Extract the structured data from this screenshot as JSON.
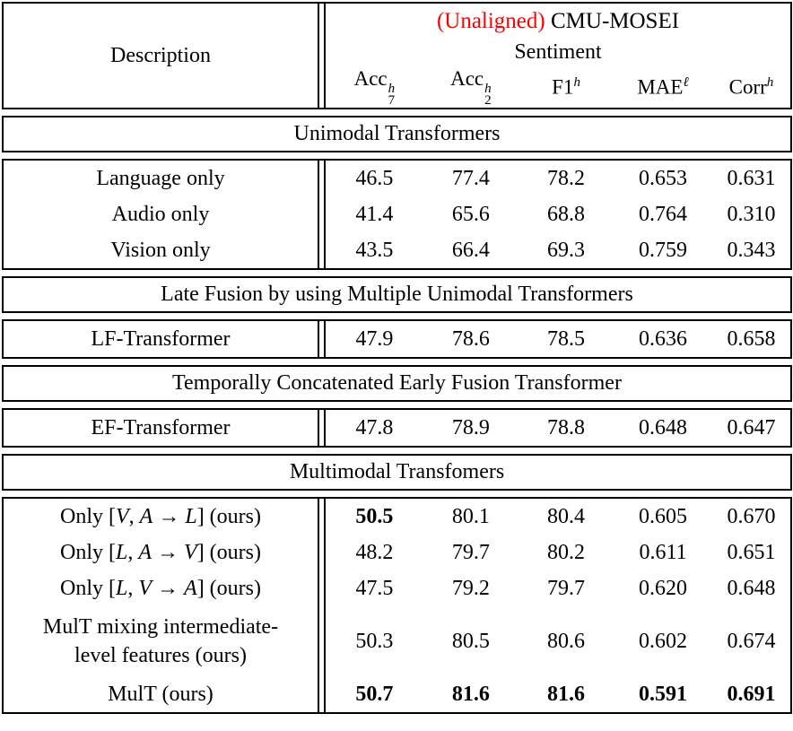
{
  "colors": {
    "accent_red": "#ff0000",
    "border": "#000000",
    "text": "#000000",
    "background": "#ffffff"
  },
  "header": {
    "description": "Description",
    "dataset_prefix": "(Unaligned)",
    "dataset_name": "CMU-MOSEI",
    "task": "Sentiment",
    "metrics": [
      {
        "base": "Acc",
        "sub": "7",
        "sup": "h"
      },
      {
        "base": "Acc",
        "sub": "2",
        "sup": "h"
      },
      {
        "base": "F1",
        "sub": "",
        "sup": "h"
      },
      {
        "base": "MAE",
        "sub": "",
        "sup": "ℓ"
      },
      {
        "base": "Corr",
        "sub": "",
        "sup": "h"
      }
    ]
  },
  "sections": [
    {
      "title": "Unimodal Transformers",
      "rows": [
        {
          "label_lines": [
            [
              {
                "t": "Language only"
              }
            ]
          ],
          "values": [
            {
              "v": "46.5"
            },
            {
              "v": "77.4"
            },
            {
              "v": "78.2"
            },
            {
              "v": "0.653"
            },
            {
              "v": "0.631"
            }
          ]
        },
        {
          "label_lines": [
            [
              {
                "t": "Audio only"
              }
            ]
          ],
          "values": [
            {
              "v": "41.4"
            },
            {
              "v": "65.6"
            },
            {
              "v": "68.8"
            },
            {
              "v": "0.764"
            },
            {
              "v": "0.310"
            }
          ]
        },
        {
          "label_lines": [
            [
              {
                "t": "Vision only"
              }
            ]
          ],
          "values": [
            {
              "v": "43.5"
            },
            {
              "v": "66.4"
            },
            {
              "v": "69.3"
            },
            {
              "v": "0.759"
            },
            {
              "v": "0.343"
            }
          ]
        }
      ]
    },
    {
      "title": "Late Fusion by using Multiple Unimodal Transformers",
      "rows": [
        {
          "label_lines": [
            [
              {
                "t": "LF-Transformer"
              }
            ]
          ],
          "values": [
            {
              "v": "47.9"
            },
            {
              "v": "78.6"
            },
            {
              "v": "78.5"
            },
            {
              "v": "0.636"
            },
            {
              "v": "0.658"
            }
          ]
        }
      ]
    },
    {
      "title": "Temporally Concatenated Early Fusion Transformer",
      "rows": [
        {
          "label_lines": [
            [
              {
                "t": "EF-Transformer"
              }
            ]
          ],
          "values": [
            {
              "v": "47.8"
            },
            {
              "v": "78.9"
            },
            {
              "v": "78.8"
            },
            {
              "v": "0.648"
            },
            {
              "v": "0.647"
            }
          ]
        }
      ]
    },
    {
      "title": "Multimodal Transfomers",
      "rows": [
        {
          "label_lines": [
            [
              {
                "t": "Only ["
              },
              {
                "t": "V",
                "i": true
              },
              {
                "t": ", "
              },
              {
                "t": "A",
                "i": true
              },
              {
                "t": " → "
              },
              {
                "t": "L",
                "i": true
              },
              {
                "t": "] (ours)"
              }
            ]
          ],
          "values": [
            {
              "v": "50.5",
              "b": true
            },
            {
              "v": "80.1"
            },
            {
              "v": "80.4"
            },
            {
              "v": "0.605"
            },
            {
              "v": "0.670"
            }
          ]
        },
        {
          "label_lines": [
            [
              {
                "t": "Only ["
              },
              {
                "t": "L",
                "i": true
              },
              {
                "t": ", "
              },
              {
                "t": "A",
                "i": true
              },
              {
                "t": " → "
              },
              {
                "t": "V",
                "i": true
              },
              {
                "t": "] (ours)"
              }
            ]
          ],
          "values": [
            {
              "v": "48.2"
            },
            {
              "v": "79.7"
            },
            {
              "v": "80.2"
            },
            {
              "v": "0.611"
            },
            {
              "v": "0.651"
            }
          ]
        },
        {
          "label_lines": [
            [
              {
                "t": "Only ["
              },
              {
                "t": "L",
                "i": true
              },
              {
                "t": ", "
              },
              {
                "t": "V",
                "i": true
              },
              {
                "t": " → "
              },
              {
                "t": "A",
                "i": true
              },
              {
                "t": "] (ours)"
              }
            ]
          ],
          "values": [
            {
              "v": "47.5"
            },
            {
              "v": "79.2"
            },
            {
              "v": "79.7"
            },
            {
              "v": "0.620"
            },
            {
              "v": "0.648"
            }
          ]
        },
        {
          "label_lines": [
            [
              {
                "t": "MulT mixing intermediate-"
              }
            ],
            [
              {
                "t": "level features (ours)"
              }
            ]
          ],
          "values": [
            {
              "v": "50.3"
            },
            {
              "v": "80.5"
            },
            {
              "v": "80.6"
            },
            {
              "v": "0.602"
            },
            {
              "v": "0.674"
            }
          ]
        },
        {
          "label_lines": [
            [
              {
                "t": "MulT (ours)"
              }
            ]
          ],
          "values": [
            {
              "v": "50.7",
              "b": true
            },
            {
              "v": "81.6",
              "b": true
            },
            {
              "v": "81.6",
              "b": true
            },
            {
              "v": "0.591",
              "b": true
            },
            {
              "v": "0.691",
              "b": true
            }
          ]
        }
      ]
    }
  ]
}
